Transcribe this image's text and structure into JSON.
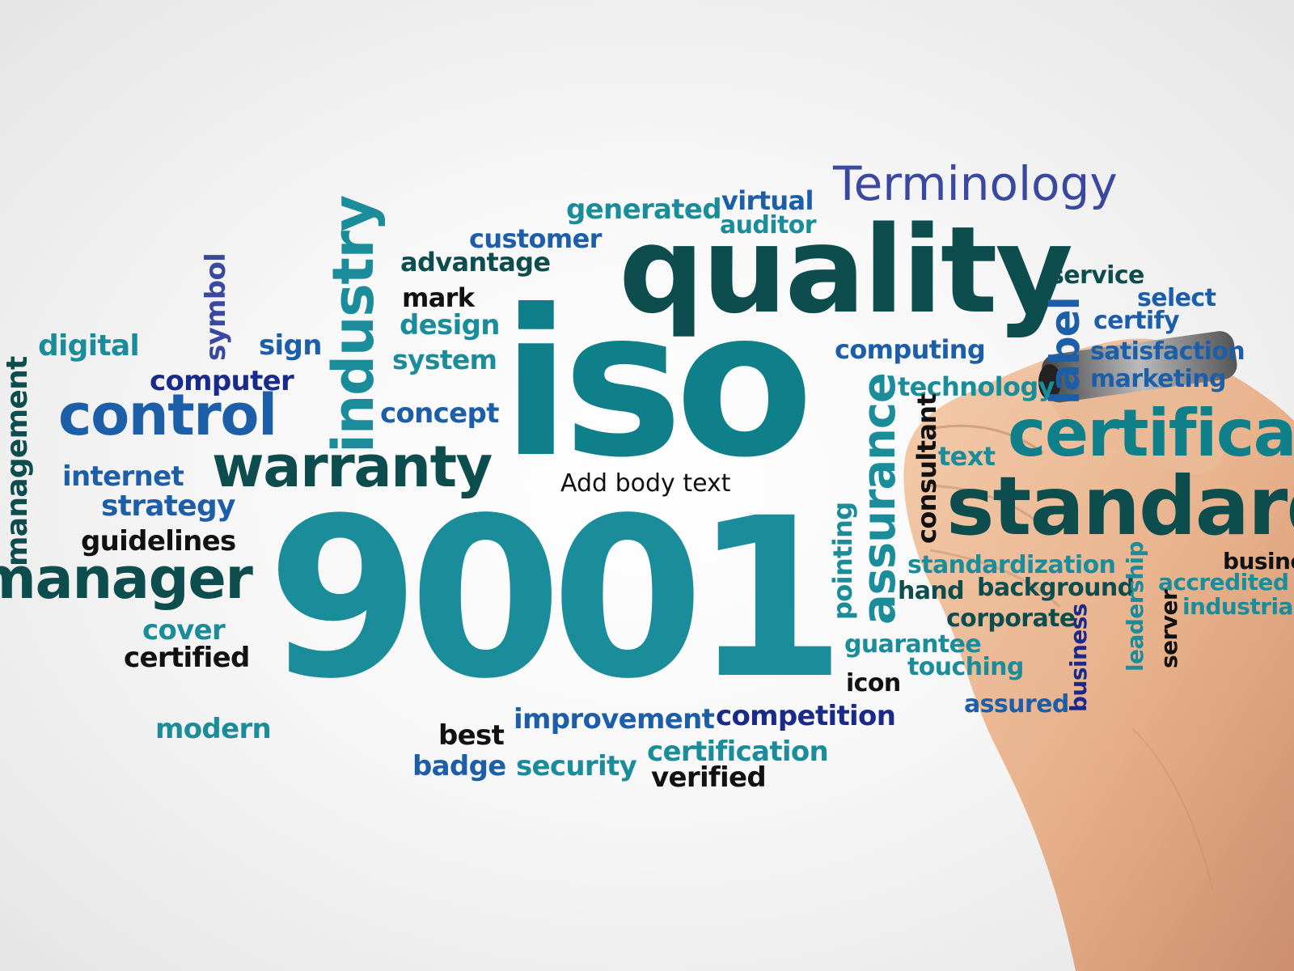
{
  "words": {
    "terminology": "Terminology",
    "quality": "quality",
    "iso": "iso",
    "n9001": "9001",
    "virtual": "virtual",
    "auditor": "auditor",
    "generated": "generated",
    "customer": "customer",
    "advantage": "advantage",
    "mark": "mark",
    "design": "design",
    "system": "system",
    "concept": "concept",
    "industry": "industry",
    "symbol": "symbol",
    "sign": "sign",
    "digital": "digital",
    "computer": "computer",
    "control": "control",
    "management": "management",
    "internet": "internet",
    "warranty": "warranty",
    "strategy": "strategy",
    "guidelines": "guidelines",
    "manager": "manager",
    "cover": "cover",
    "certified": "certified",
    "modern": "modern",
    "best": "best",
    "badge": "badge",
    "improvement": "improvement",
    "security": "security",
    "competition": "competition",
    "certification": "certification",
    "verified": "verified",
    "service": "service",
    "select": "select",
    "certify": "certify",
    "satisfaction": "satisfaction",
    "marketing": "marketing",
    "label": "label",
    "computing": "computing",
    "technology": "technology",
    "certificate": "certificat",
    "text": "text",
    "consultant": "consultant",
    "assurance": "assurance",
    "standard": "standard",
    "pointing": "pointing",
    "standardization": "standardization",
    "business_top": "business",
    "hand": "hand",
    "background": "background",
    "accredited": "accredited",
    "industrial": "industrial",
    "corporate": "corporate",
    "leadership": "leadership",
    "server": "server",
    "guarantee": "guarantee",
    "touching": "touching",
    "business": "business",
    "icon": "icon",
    "assured": "assured"
  },
  "placeholder": {
    "body_text": "Add body text"
  },
  "colors": {
    "dark_teal": "#0e4d4d",
    "teal": "#0f7f8a",
    "mid_teal": "#1b8c9a",
    "blue": "#1c5fa8",
    "navy": "#1a2a8a",
    "indigo": "#3a48a0",
    "black": "#111111",
    "skin": "#e9b48e"
  }
}
